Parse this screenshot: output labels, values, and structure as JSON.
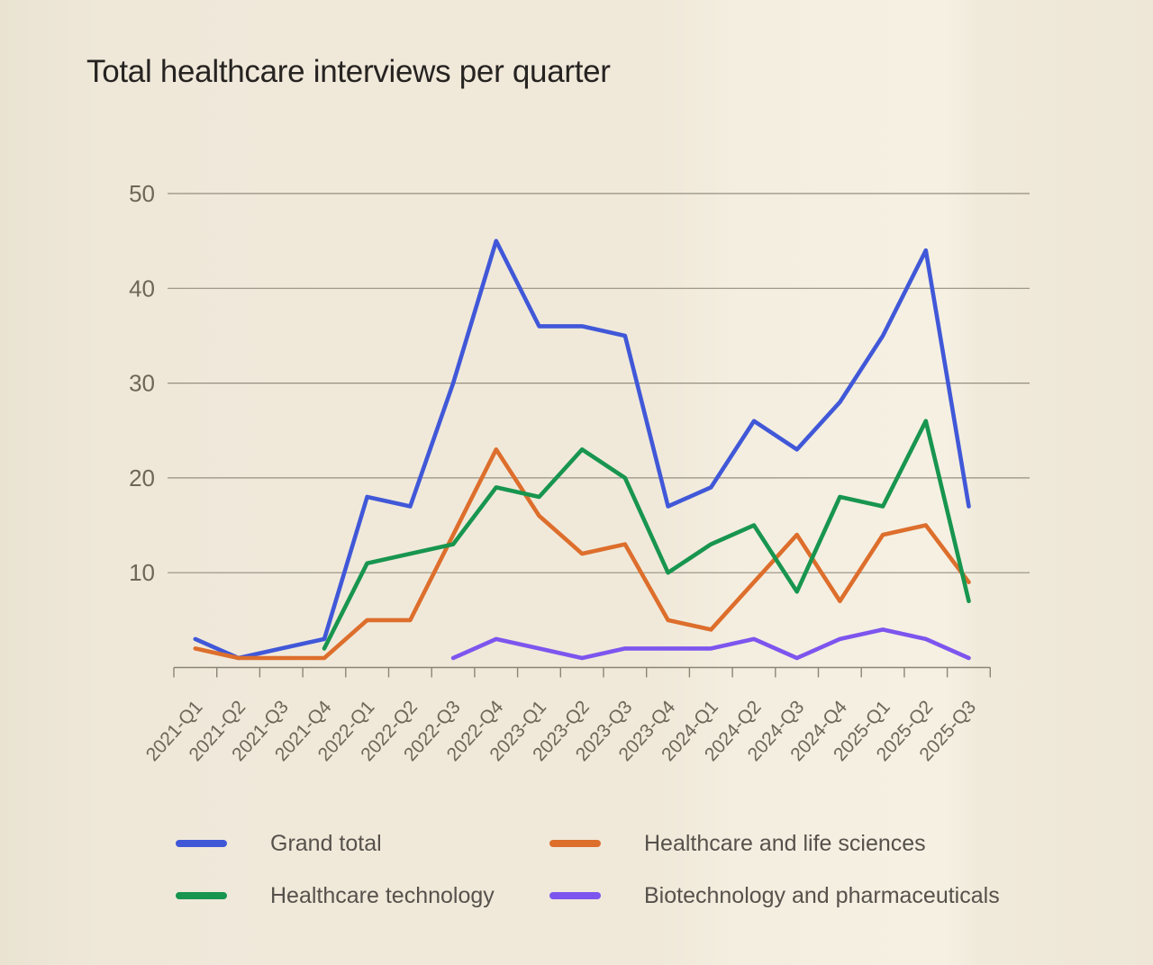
{
  "title": "Total healthcare interviews per quarter",
  "chart_data": {
    "type": "line",
    "title": "Total healthcare interviews per quarter",
    "categories": [
      "2021-Q1",
      "2021-Q2",
      "2021-Q3",
      "2021-Q4",
      "2022-Q1",
      "2022-Q2",
      "2022-Q3",
      "2022-Q4",
      "2023-Q1",
      "2023-Q2",
      "2023-Q3",
      "2023-Q4",
      "2024-Q1",
      "2024-Q2",
      "2024-Q3",
      "2024-Q4",
      "2025-Q1",
      "2025-Q2",
      "2025-Q3"
    ],
    "series": [
      {
        "name": "Grand total",
        "color": "#4058d8",
        "values": [
          3,
          1,
          2,
          3,
          18,
          17,
          30,
          45,
          36,
          36,
          35,
          17,
          19,
          26,
          23,
          28,
          35,
          44,
          17
        ]
      },
      {
        "name": "Healthcare and life sciences",
        "color": "#dd6e2c",
        "values": [
          2,
          1,
          1,
          1,
          5,
          5,
          14,
          23,
          16,
          12,
          13,
          5,
          4,
          9,
          14,
          7,
          14,
          15,
          9
        ]
      },
      {
        "name": "Healthcare technology",
        "color": "#18954f",
        "values": [
          null,
          null,
          null,
          2,
          11,
          12,
          13,
          19,
          18,
          23,
          20,
          10,
          13,
          15,
          8,
          18,
          17,
          26,
          7
        ]
      },
      {
        "name": "Biotechnology and pharmaceuticals",
        "color": "#7d55ee",
        "values": [
          null,
          null,
          null,
          null,
          null,
          null,
          1,
          3,
          2,
          1,
          2,
          2,
          2,
          3,
          1,
          3,
          4,
          3,
          1
        ]
      }
    ],
    "xlabel": "",
    "ylabel": "",
    "ylim": [
      0,
      50
    ],
    "yticks": [
      10,
      20,
      30,
      40,
      50
    ],
    "grid": "horizontal",
    "legend_position": "bottom"
  },
  "legend": {
    "items": [
      {
        "label": "Grand total",
        "color": "#4058d8"
      },
      {
        "label": "Healthcare and life sciences",
        "color": "#dd6e2c"
      },
      {
        "label": "Healthcare technology",
        "color": "#18954f"
      },
      {
        "label": "Biotechnology and pharmaceuticals",
        "color": "#7d55ee"
      }
    ]
  }
}
